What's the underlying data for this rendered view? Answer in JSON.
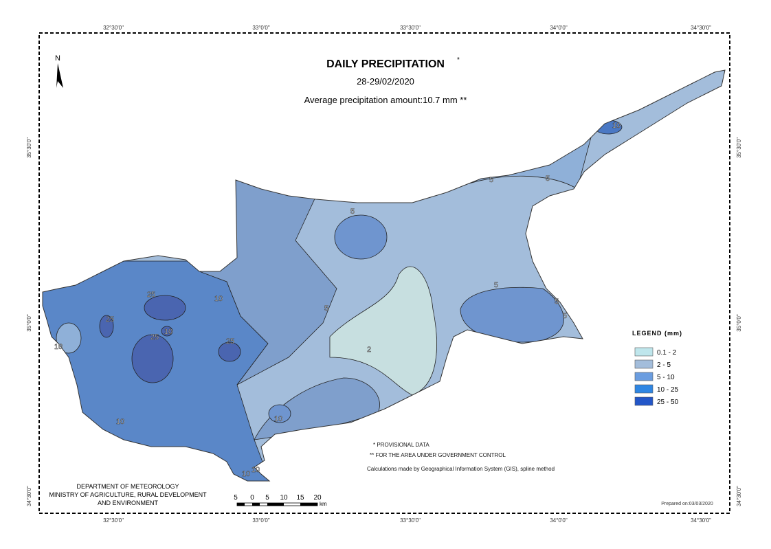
{
  "header": {
    "title": "DAILY PRECIPITATION",
    "title_mark": "*",
    "date": "28-29/02/2020",
    "average": "Average precipitation amount:10.7 mm **"
  },
  "north": "N",
  "coordinates": {
    "top": [
      "32°30'0\"",
      "33°0'0\"",
      "33°30'0\"",
      "34°0'0\"",
      "34°30'0\""
    ],
    "bottom": [
      "32°30'0\"",
      "33°0'0\"",
      "33°30'0\"",
      "34°0'0\"",
      "34°30'0\""
    ],
    "left": [
      "35°30'0\"",
      "35°0'0\"",
      "34°30'0\""
    ],
    "right": [
      "35°30'0\"",
      "35°0'0\"",
      "34°30'0\""
    ]
  },
  "legend": {
    "title": "LEGEND (mm)",
    "items": [
      {
        "label": "0.1 - 2",
        "color": "#bfe6ec"
      },
      {
        "label": "2 - 5",
        "color": "#a3bddb"
      },
      {
        "label": "5 - 10",
        "color": "#6b9de0"
      },
      {
        "label": "10 - 25",
        "color": "#2f86e3"
      },
      {
        "label": "25 - 50",
        "color": "#2356c8"
      }
    ]
  },
  "contour_labels": [
    "10",
    "5",
    "5",
    "5",
    "5",
    "5",
    "5",
    "25",
    "25",
    "10",
    "25",
    "10",
    "10",
    "25",
    "2",
    "5",
    "10",
    "10",
    "10",
    "10"
  ],
  "notes": [
    "* PROVISIONAL DATA",
    "** FOR THE AREA UNDER GOVERNMENT CONTROL",
    "Calculations made by Geographical Information System (GIS), spline method"
  ],
  "department": [
    "DEPARTMENT OF METEOROLOGY",
    "MINISTRY OF AGRICULTURE, RURAL DEVELOPMENT",
    "AND ENVIRONMENT"
  ],
  "scale": {
    "labels": [
      "5",
      "0",
      "5",
      "10",
      "15",
      "20"
    ],
    "unit": "km"
  },
  "prepared": "Prepared on:03/03/2020"
}
